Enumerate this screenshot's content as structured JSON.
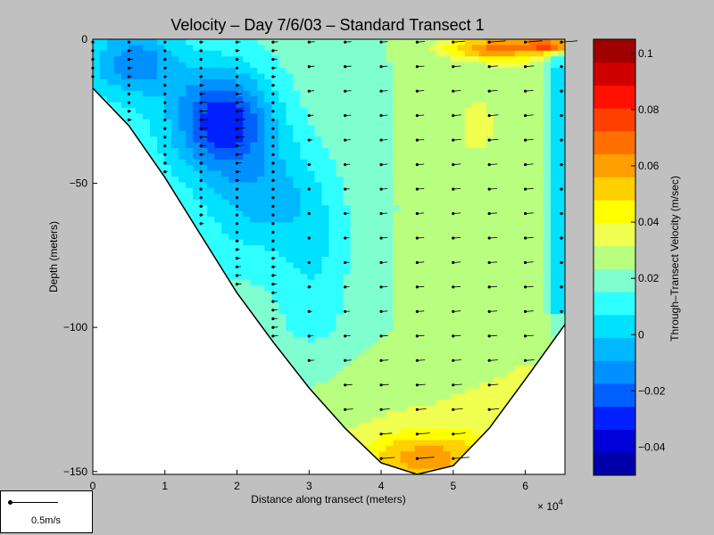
{
  "chart_data": [
    {
      "type": "heatmap",
      "title": "Velocity – Day 7/6/03 – Standard Transect 1",
      "xlabel": "Distance along transect (meters)",
      "x_multiplier": "× 10",
      "x_multiplier_exp": "4",
      "ylabel": "Depth (meters)",
      "xlim": [
        0,
        6.55
      ],
      "ylim": [
        -151,
        0
      ],
      "x_ticks": [
        "0",
        "1",
        "2",
        "3",
        "4",
        "5",
        "6"
      ],
      "y_ticks": [
        "0",
        "−50",
        "−100",
        "−150"
      ],
      "bottom_profile": {
        "x": [
          0,
          0.5,
          1,
          1.5,
          2,
          2.5,
          3,
          3.5,
          4,
          4.5,
          5,
          5.5,
          6,
          6.55
        ],
        "depth": [
          -17,
          -30,
          -48,
          -68,
          -88,
          -105,
          -121,
          -135,
          -147,
          -151,
          -148,
          -135,
          -118,
          -99
        ]
      },
      "profile_stations_x": [
        0,
        0.5,
        1,
        1.5,
        2,
        2.5,
        3,
        3.5,
        4,
        4.5,
        5,
        5.5,
        6,
        6.5
      ],
      "colorbar": {
        "label": "Through–Transect Velocity (m/sec)",
        "min": -0.05,
        "max": 0.105,
        "ticks": [
          "0.1",
          "0.08",
          "0.06",
          "0.04",
          "0.02",
          "0",
          "−0.02",
          "−0.04"
        ],
        "tick_values": [
          0.1,
          0.08,
          0.06,
          0.04,
          0.02,
          0,
          -0.02,
          -0.04
        ],
        "colors": [
          "#0000a8",
          "#0000d8",
          "#0020ff",
          "#0060ff",
          "#0090ff",
          "#00b8ff",
          "#00e0ff",
          "#30ffff",
          "#7fffd0",
          "#b8ff80",
          "#f0ff50",
          "#ffff00",
          "#ffd000",
          "#ffa000",
          "#ff7000",
          "#ff4000",
          "#ff1000",
          "#d00000",
          "#a00000"
        ]
      }
    }
  ],
  "reference_arrow": {
    "label": "0.5m/s"
  }
}
